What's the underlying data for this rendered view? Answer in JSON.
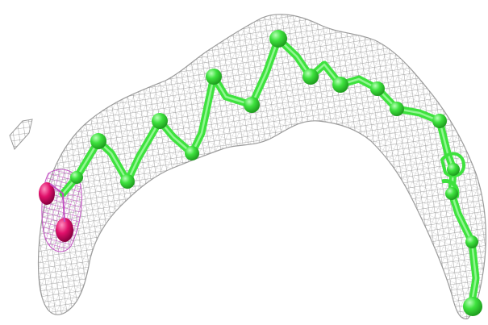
{
  "scene": {
    "background": "#ffffff",
    "mesh_color": "#8c8c8c",
    "mesh_highlight_color": "#bdbdbd",
    "chain_color": "#3ee23e",
    "chain_highlight_color": "#b8ffb8",
    "chain_shadow_color": "#1f9e1f",
    "headgroup_color": "#e0106a",
    "headgroup_mesh_color": "#c04fc0",
    "icons": [
      "electron-density-mesh",
      "ligand-stick-model"
    ]
  }
}
